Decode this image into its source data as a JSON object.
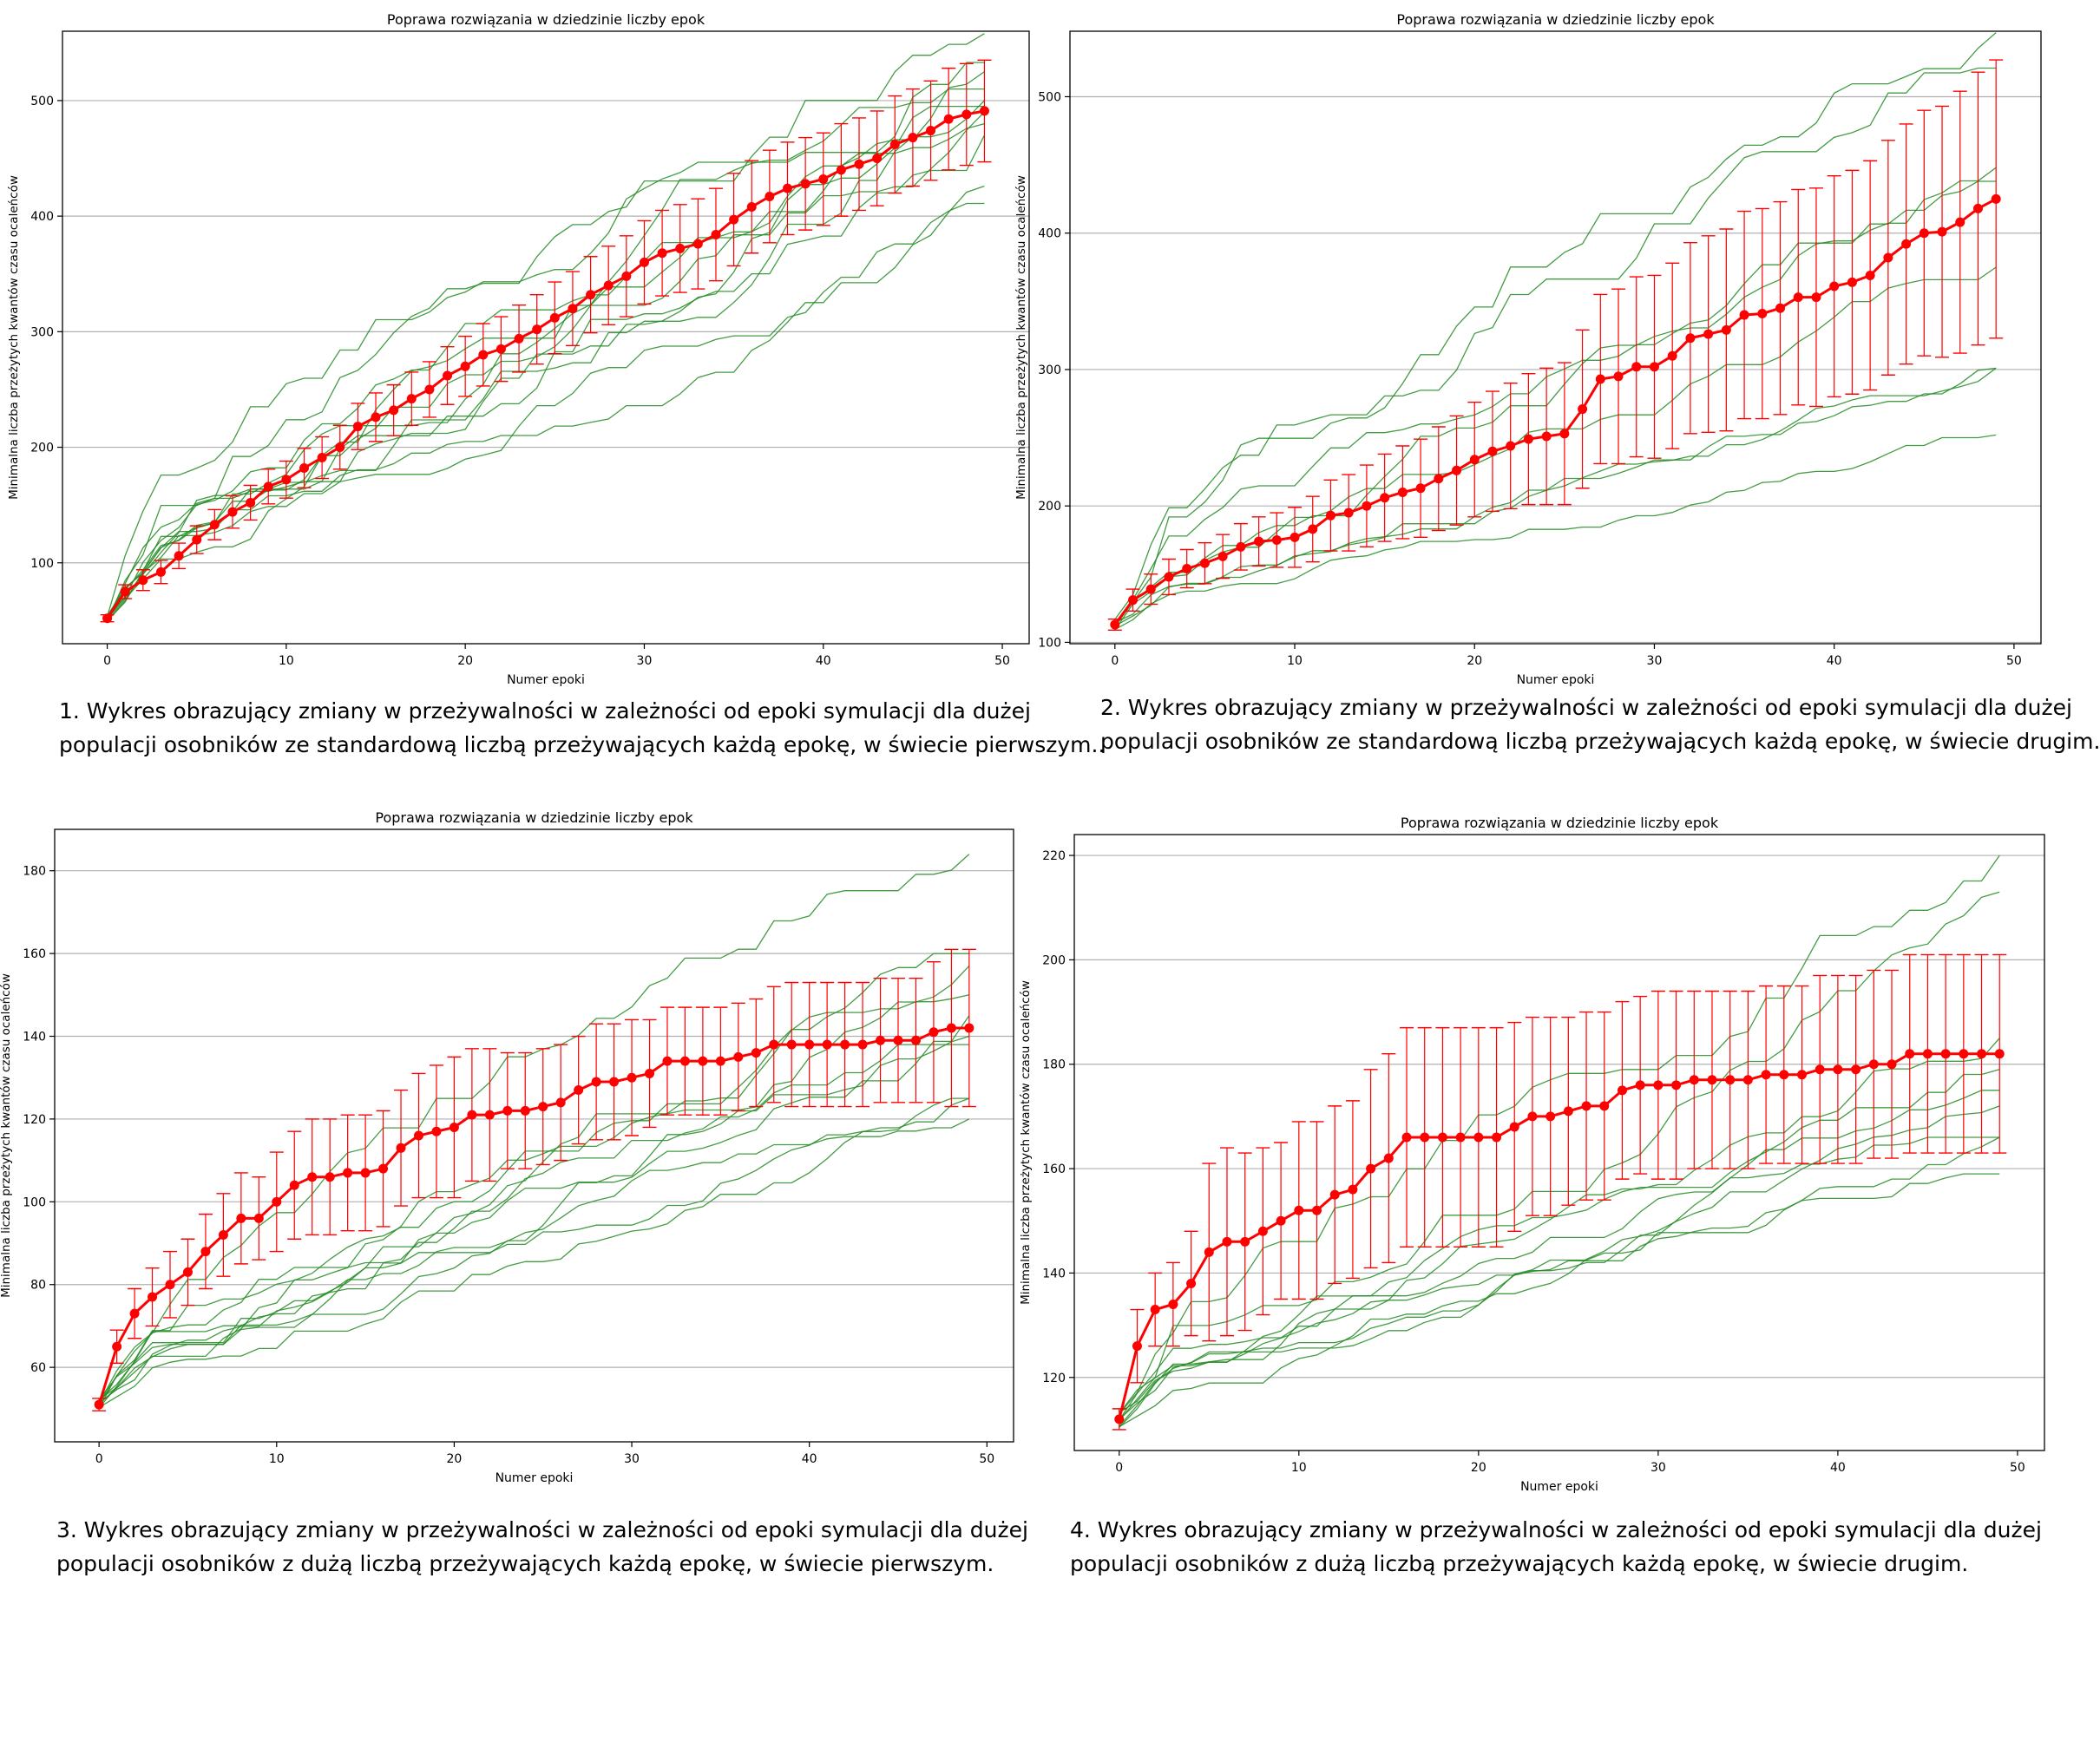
{
  "charts": [
    {
      "title": "Poprawa rozwiązania w dziedzinie liczby epok",
      "caption_lines": [
        "1. Wykres obrazujący zmiany w przeżywalności w zależności od epoki symulacji dla dużej",
        "populacji osobników ze standardową liczbą przeżywających każdą epokę, w świecie pierwszym.."
      ]
    },
    {
      "title": "Poprawa rozwiązania w dziedzinie liczby epok",
      "caption_lines": [
        "2. Wykres obrazujący zmiany w przeżywalności w zależności od epoki symulacji dla dużej",
        "populacji osobników ze standardową liczbą przeżywających każdą epokę, w świecie drugim."
      ]
    },
    {
      "title": "Poprawa rozwiązania w dziedzinie liczby epok",
      "caption_lines": [
        "3. Wykres obrazujący zmiany w przeżywalności w zależności od epoki symulacji dla dużej",
        "populacji osobników z dużą liczbą przeżywających każdą epokę, w świecie pierwszym."
      ]
    },
    {
      "title": "Poprawa rozwiązania w dziedzinie liczby epok",
      "caption_lines": [
        "4. Wykres obrazujący zmiany w przeżywalności w zależności od epoki symulacji dla dużej",
        "populacji osobników z dużą liczbą przeżywających każdą epokę, w świecie drugim."
      ]
    }
  ],
  "colors": {
    "mean": "#ff0000",
    "runs": "#228b22",
    "grid": "#b0b0b0"
  },
  "chart_data": [
    {
      "type": "line",
      "title": "Poprawa rozwiązania w dziedzinie liczby epok",
      "xlabel": "Numer epoki",
      "ylabel": "Minimalna liczba przeżytych kwantów czasu ocaleńców",
      "xlim": [
        -2.5,
        51.5
      ],
      "ylim": [
        30,
        560
      ],
      "xticks": [
        0,
        10,
        20,
        30,
        40,
        50
      ],
      "yticks": [
        100,
        200,
        300,
        400,
        500
      ],
      "grid": "y",
      "mean": [
        52,
        75,
        85,
        92,
        106,
        120,
        133,
        144,
        152,
        166,
        172,
        182,
        191,
        200,
        218,
        226,
        232,
        242,
        250,
        262,
        270,
        280,
        285,
        294,
        302,
        312,
        320,
        332,
        340,
        348,
        360,
        368,
        372,
        376,
        384,
        397,
        408,
        417,
        424,
        428,
        432,
        440,
        445,
        450,
        462,
        468,
        474,
        484,
        488,
        491
      ],
      "error_half": [
        3,
        6,
        9,
        10,
        11,
        12,
        13,
        14,
        15,
        15,
        16,
        17,
        18,
        19,
        20,
        21,
        22,
        23,
        24,
        25,
        26,
        27,
        28,
        29,
        30,
        31,
        32,
        33,
        34,
        35,
        36,
        37,
        38,
        39,
        40,
        40,
        40,
        40,
        40,
        40,
        40,
        40,
        40,
        41,
        42,
        42,
        43,
        44,
        44,
        44
      ],
      "runs_final": [
        558,
        533,
        525,
        510,
        500,
        495,
        490,
        480,
        470,
        426,
        411
      ]
    },
    {
      "type": "line",
      "title": "Poprawa rozwiązania w dziedzinie liczby epok",
      "xlabel": "Numer epoki",
      "ylabel": "Minimalna liczba przeżytych kwantów czasu ocaleńców",
      "xlim": [
        -2.5,
        51.5
      ],
      "ylim": [
        99,
        548
      ],
      "xticks": [
        0,
        10,
        20,
        30,
        40,
        50
      ],
      "yticks": [
        100,
        200,
        300,
        400,
        500
      ],
      "grid": "y",
      "mean": [
        113,
        131,
        139,
        148,
        154,
        158,
        163,
        170,
        174,
        175,
        177,
        183,
        193,
        195,
        200,
        206,
        210,
        213,
        220,
        226,
        234,
        240,
        244,
        249,
        251,
        253,
        271,
        293,
        295,
        302,
        302,
        310,
        323,
        326,
        329,
        340,
        341,
        345,
        353,
        353,
        361,
        364,
        369,
        382,
        392,
        400,
        401,
        408,
        418,
        425
      ],
      "error_half": [
        4,
        8,
        11,
        13,
        14,
        15,
        16,
        17,
        18,
        20,
        22,
        24,
        26,
        28,
        30,
        32,
        34,
        36,
        38,
        40,
        42,
        44,
        46,
        48,
        50,
        52,
        58,
        62,
        64,
        66,
        67,
        68,
        70,
        72,
        74,
        76,
        77,
        78,
        79,
        80,
        81,
        82,
        84,
        86,
        88,
        90,
        92,
        96,
        100,
        102
      ],
      "runs_final": [
        547,
        521,
        448,
        438,
        375,
        301,
        301,
        252
      ]
    },
    {
      "type": "line",
      "title": "Poprawa rozwiązania w dziedzinie liczby epok",
      "xlabel": "Numer epoki",
      "ylabel": "Minimalna liczba przeżytych kwantów czasu ocaleńców",
      "xlim": [
        -2.5,
        51.5
      ],
      "ylim": [
        42,
        190
      ],
      "xticks": [
        0,
        10,
        20,
        30,
        40,
        50
      ],
      "yticks": [
        60,
        80,
        100,
        120,
        140,
        160,
        180
      ],
      "grid": "y",
      "mean": [
        51,
        65,
        73,
        77,
        80,
        83,
        88,
        92,
        96,
        96,
        100,
        104,
        106,
        106,
        107,
        107,
        108,
        113,
        116,
        117,
        118,
        121,
        121,
        122,
        122,
        123,
        124,
        127,
        129,
        129,
        130,
        131,
        134,
        134,
        134,
        134,
        135,
        136,
        138,
        138,
        138,
        138,
        138,
        138,
        139,
        139,
        139,
        141,
        142,
        142
      ],
      "error_half": [
        1.5,
        4,
        6,
        7,
        8,
        8,
        9,
        10,
        11,
        10,
        12,
        13,
        14,
        14,
        14,
        14,
        14,
        14,
        15,
        16,
        17,
        16,
        16,
        14,
        14,
        14,
        14,
        13,
        14,
        14,
        14,
        13,
        13,
        13,
        13,
        13,
        13,
        13,
        14,
        15,
        15,
        15,
        15,
        15,
        15,
        15,
        15,
        17,
        19,
        19
      ],
      "runs_final": [
        184,
        160,
        157,
        150,
        145,
        140,
        138,
        125,
        125,
        120
      ]
    },
    {
      "type": "line",
      "title": "Poprawa rozwiązania w dziedzinie liczby epok",
      "xlabel": "Numer epoki",
      "ylabel": "Minimalna liczba przeżytych kwantów czasu ocaleńców",
      "xlim": [
        -2.5,
        51.5
      ],
      "ylim": [
        106,
        224
      ],
      "xticks": [
        0,
        10,
        20,
        30,
        40,
        50
      ],
      "yticks": [
        120,
        140,
        160,
        180,
        200,
        220
      ],
      "grid": "y",
      "mean": [
        112,
        126,
        133,
        134,
        138,
        144,
        146,
        146,
        148,
        150,
        152,
        152,
        155,
        156,
        160,
        162,
        166,
        166,
        166,
        166,
        166,
        166,
        168,
        170,
        170,
        171,
        172,
        172,
        175,
        176,
        176,
        176,
        177,
        177,
        177,
        177,
        178,
        178,
        178,
        179,
        179,
        179,
        180,
        180,
        182,
        182,
        182,
        182,
        182,
        182
      ],
      "error_half": [
        2,
        7,
        7,
        8,
        10,
        17,
        18,
        17,
        16,
        15,
        17,
        17,
        17,
        17,
        19,
        20,
        21,
        21,
        21,
        21,
        21,
        21,
        20,
        19,
        19,
        18,
        18,
        18,
        17,
        17,
        18,
        18,
        17,
        17,
        17,
        17,
        17,
        17,
        17,
        18,
        18,
        18,
        18,
        18,
        19,
        19,
        19,
        19,
        19,
        19
      ],
      "runs_final": [
        220,
        213,
        185,
        179,
        175,
        172,
        166,
        166,
        159
      ]
    }
  ]
}
